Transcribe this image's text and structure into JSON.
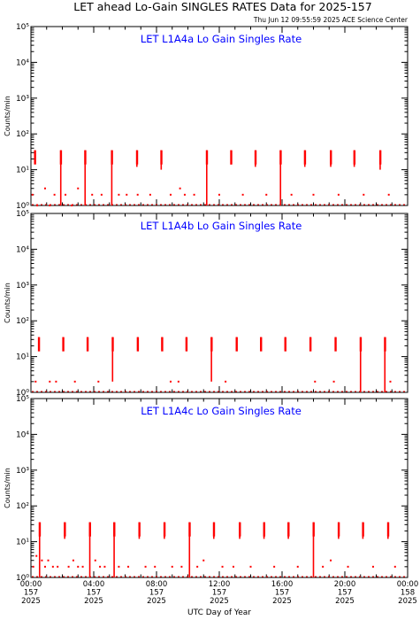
{
  "header": {
    "title": "LET ahead Lo-Gain SINGLES RATES Data for 2025-157",
    "timestamp": "Thu Jun 12 09:55:59 2025 ACE Science Center"
  },
  "colors": {
    "axes": "#000000",
    "panel_title": "#0000ff",
    "data": "#ff0000"
  },
  "chart_data": [
    {
      "type": "scatter",
      "title": "LET L1A4a Lo Gain Singles Rate",
      "ylabel": "Counts/min",
      "xlabel": "",
      "yscale": "log",
      "ylim": [
        1,
        100000
      ],
      "xlim": [
        0,
        24
      ],
      "y_ticks": [
        "10⁰",
        "10¹",
        "10²",
        "10³",
        "10⁴",
        "10⁵"
      ],
      "x_tick_labels": [],
      "x_ticks_major": [
        0,
        4,
        8,
        12,
        16,
        20,
        24
      ],
      "legend": "none",
      "grid": false,
      "series": [
        {
          "bursts": [
            {
              "x": 0.25,
              "peak": 35,
              "low": 15
            },
            {
              "x": 1.9,
              "peak": 35,
              "low": 1
            },
            {
              "x": 3.45,
              "peak": 35,
              "low": 1
            },
            {
              "x": 5.15,
              "peak": 35,
              "low": 1
            },
            {
              "x": 6.75,
              "peak": 35,
              "low": 12
            },
            {
              "x": 8.3,
              "peak": 35,
              "low": 10
            },
            {
              "x": 11.2,
              "peak": 35,
              "low": 1
            },
            {
              "x": 12.75,
              "peak": 35,
              "low": 14
            },
            {
              "x": 14.3,
              "peak": 35,
              "low": 12
            },
            {
              "x": 15.9,
              "peak": 35,
              "low": 1
            },
            {
              "x": 17.45,
              "peak": 35,
              "low": 12
            },
            {
              "x": 19.1,
              "peak": 35,
              "low": 12
            },
            {
              "x": 20.6,
              "peak": 35,
              "low": 12
            },
            {
              "x": 22.25,
              "peak": 35,
              "low": 10
            }
          ],
          "baseline": [
            {
              "x": 0.1,
              "y": 2
            },
            {
              "x": 0.4,
              "y": 1
            },
            {
              "x": 0.9,
              "y": 3
            },
            {
              "x": 1.2,
              "y": 1
            },
            {
              "x": 1.5,
              "y": 2
            },
            {
              "x": 2.2,
              "y": 2
            },
            {
              "x": 2.6,
              "y": 1
            },
            {
              "x": 3.0,
              "y": 3
            },
            {
              "x": 3.9,
              "y": 2
            },
            {
              "x": 4.5,
              "y": 2
            },
            {
              "x": 5.6,
              "y": 2
            },
            {
              "x": 6.1,
              "y": 2
            },
            {
              "x": 6.8,
              "y": 2
            },
            {
              "x": 7.6,
              "y": 2
            },
            {
              "x": 8.9,
              "y": 2
            },
            {
              "x": 9.5,
              "y": 3
            },
            {
              "x": 9.8,
              "y": 2
            },
            {
              "x": 10.4,
              "y": 2
            },
            {
              "x": 12.0,
              "y": 2
            },
            {
              "x": 13.5,
              "y": 2
            },
            {
              "x": 15.0,
              "y": 2
            },
            {
              "x": 16.6,
              "y": 2
            },
            {
              "x": 18.0,
              "y": 2
            },
            {
              "x": 19.6,
              "y": 2
            },
            {
              "x": 21.2,
              "y": 2
            },
            {
              "x": 22.8,
              "y": 2
            }
          ]
        }
      ]
    },
    {
      "type": "scatter",
      "title": "LET L1A4b Lo Gain Singles Rate",
      "ylabel": "Counts/min",
      "xlabel": "",
      "yscale": "log",
      "ylim": [
        1,
        100000
      ],
      "xlim": [
        0,
        24
      ],
      "y_ticks": [
        "10⁰",
        "10¹",
        "10²",
        "10³",
        "10⁴",
        "10⁵"
      ],
      "x_tick_labels": [],
      "x_ticks_major": [
        0,
        4,
        8,
        12,
        16,
        20,
        24
      ],
      "legend": "none",
      "grid": false,
      "series": [
        {
          "bursts": [
            {
              "x": 0.5,
              "peak": 35,
              "low": 15
            },
            {
              "x": 2.05,
              "peak": 35,
              "low": 15
            },
            {
              "x": 3.6,
              "peak": 35,
              "low": 15
            },
            {
              "x": 5.2,
              "peak": 35,
              "low": 2
            },
            {
              "x": 6.8,
              "peak": 35,
              "low": 15
            },
            {
              "x": 8.35,
              "peak": 35,
              "low": 15
            },
            {
              "x": 9.9,
              "peak": 35,
              "low": 15
            },
            {
              "x": 11.5,
              "peak": 35,
              "low": 2
            },
            {
              "x": 13.1,
              "peak": 35,
              "low": 15
            },
            {
              "x": 14.65,
              "peak": 35,
              "low": 15
            },
            {
              "x": 16.2,
              "peak": 35,
              "low": 15
            },
            {
              "x": 17.8,
              "peak": 35,
              "low": 15
            },
            {
              "x": 19.4,
              "peak": 35,
              "low": 15
            },
            {
              "x": 21.0,
              "peak": 35,
              "low": 1
            },
            {
              "x": 22.55,
              "peak": 35,
              "low": 1
            }
          ],
          "baseline": [
            {
              "x": 0.3,
              "y": 2
            },
            {
              "x": 1.2,
              "y": 2
            },
            {
              "x": 1.6,
              "y": 2
            },
            {
              "x": 2.8,
              "y": 2
            },
            {
              "x": 4.3,
              "y": 2
            },
            {
              "x": 8.9,
              "y": 2
            },
            {
              "x": 9.4,
              "y": 2
            },
            {
              "x": 12.4,
              "y": 2
            },
            {
              "x": 18.1,
              "y": 2
            },
            {
              "x": 19.3,
              "y": 2
            },
            {
              "x": 22.9,
              "y": 2
            }
          ]
        }
      ]
    },
    {
      "type": "scatter",
      "title": "LET L1A4c Lo Gain Singles Rate",
      "ylabel": "Counts/min",
      "xlabel": "UTC Day of Year",
      "yscale": "log",
      "ylim": [
        1,
        100000
      ],
      "xlim": [
        0,
        24
      ],
      "y_ticks": [
        "10⁰",
        "10¹",
        "10²",
        "10³",
        "10⁴",
        "10⁵"
      ],
      "x_tick_labels": [
        {
          "time": "00:00",
          "doy": "157",
          "year": "2025"
        },
        {
          "time": "04:00",
          "doy": "157",
          "year": "2025"
        },
        {
          "time": "08:00",
          "doy": "157",
          "year": "2025"
        },
        {
          "time": "12:00",
          "doy": "157",
          "year": "2025"
        },
        {
          "time": "16:00",
          "doy": "157",
          "year": "2025"
        },
        {
          "time": "20:00",
          "doy": "157",
          "year": "2025"
        },
        {
          "time": "00:00",
          "doy": "158",
          "year": "2025"
        }
      ],
      "x_ticks_major": [
        0,
        4,
        8,
        12,
        16,
        20,
        24
      ],
      "legend": "none",
      "grid": false,
      "series": [
        {
          "bursts": [
            {
              "x": 0.55,
              "peak": 35,
              "low": 1
            },
            {
              "x": 2.15,
              "peak": 35,
              "low": 12
            },
            {
              "x": 3.75,
              "peak": 35,
              "low": 1
            },
            {
              "x": 5.3,
              "peak": 35,
              "low": 1
            },
            {
              "x": 6.9,
              "peak": 35,
              "low": 12
            },
            {
              "x": 8.5,
              "peak": 35,
              "low": 12
            },
            {
              "x": 10.1,
              "peak": 35,
              "low": 1
            },
            {
              "x": 11.65,
              "peak": 35,
              "low": 12
            },
            {
              "x": 13.3,
              "peak": 35,
              "low": 12
            },
            {
              "x": 14.85,
              "peak": 35,
              "low": 12
            },
            {
              "x": 16.4,
              "peak": 35,
              "low": 12
            },
            {
              "x": 18.0,
              "peak": 35,
              "low": 1
            },
            {
              "x": 19.6,
              "peak": 35,
              "low": 12
            },
            {
              "x": 21.15,
              "peak": 35,
              "low": 12
            },
            {
              "x": 22.75,
              "peak": 35,
              "low": 12
            }
          ],
          "baseline": [
            {
              "x": 0.15,
              "y": 2
            },
            {
              "x": 0.35,
              "y": 4
            },
            {
              "x": 0.7,
              "y": 3
            },
            {
              "x": 0.9,
              "y": 2
            },
            {
              "x": 1.1,
              "y": 3
            },
            {
              "x": 1.4,
              "y": 2
            },
            {
              "x": 1.7,
              "y": 2
            },
            {
              "x": 2.4,
              "y": 2
            },
            {
              "x": 2.7,
              "y": 3
            },
            {
              "x": 3.0,
              "y": 2
            },
            {
              "x": 3.3,
              "y": 2
            },
            {
              "x": 4.1,
              "y": 3
            },
            {
              "x": 4.4,
              "y": 2
            },
            {
              "x": 4.7,
              "y": 2
            },
            {
              "x": 5.6,
              "y": 2
            },
            {
              "x": 6.2,
              "y": 2
            },
            {
              "x": 7.3,
              "y": 2
            },
            {
              "x": 7.9,
              "y": 2
            },
            {
              "x": 9.0,
              "y": 2
            },
            {
              "x": 9.6,
              "y": 2
            },
            {
              "x": 10.6,
              "y": 2
            },
            {
              "x": 11.0,
              "y": 3
            },
            {
              "x": 12.2,
              "y": 2
            },
            {
              "x": 12.9,
              "y": 2
            },
            {
              "x": 14.0,
              "y": 2
            },
            {
              "x": 15.5,
              "y": 2
            },
            {
              "x": 17.0,
              "y": 2
            },
            {
              "x": 18.6,
              "y": 2
            },
            {
              "x": 19.1,
              "y": 3
            },
            {
              "x": 20.2,
              "y": 2
            },
            {
              "x": 21.8,
              "y": 2
            },
            {
              "x": 23.2,
              "y": 2
            }
          ]
        }
      ]
    }
  ]
}
